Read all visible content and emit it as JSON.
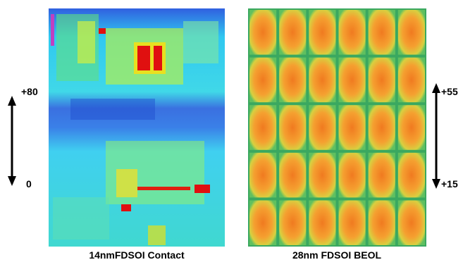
{
  "panels": [
    {
      "caption": "14nmFDSOI Contact",
      "scale_top": "+80",
      "scale_bottom": "0"
    },
    {
      "caption": "28nm FDSOI BEOL",
      "scale_top": "+55",
      "scale_bottom": "+15"
    }
  ]
}
